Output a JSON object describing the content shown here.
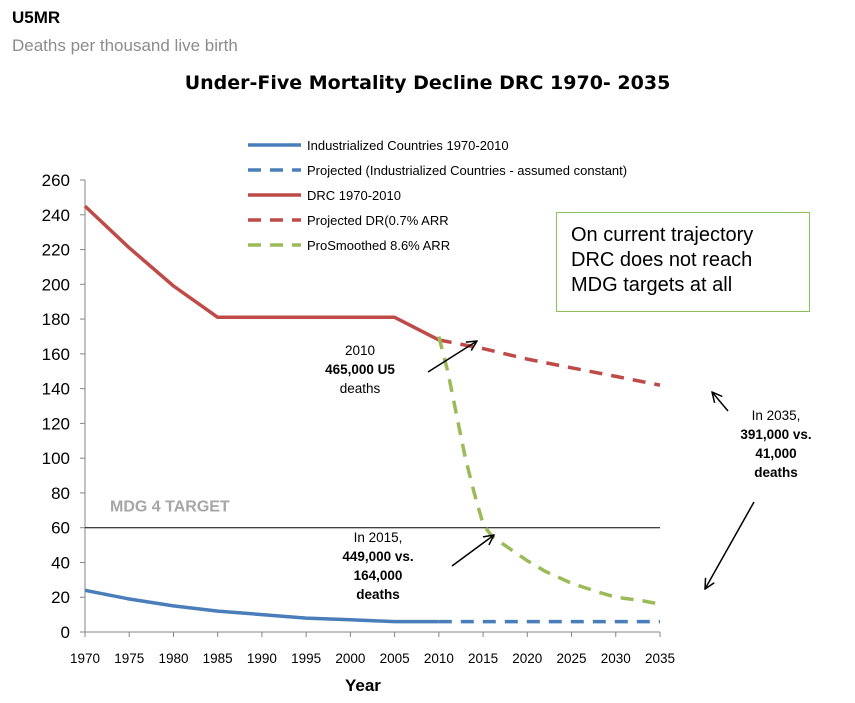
{
  "chart_data": {
    "type": "line",
    "unit_label": "U5MR",
    "unit_sublabel": "Deaths per thousand live birth",
    "title": "Under-Five Mortality Decline DRC 1970- 2035",
    "xlabel": "Year",
    "ylabel": "",
    "xlim": [
      1970,
      2035
    ],
    "ylim": [
      0,
      260
    ],
    "x_ticks": [
      "1970",
      "1975",
      "1980",
      "1985",
      "1990",
      "1995",
      "2000",
      "2005",
      "2010",
      "2015",
      "2020",
      "2025",
      "2030",
      "2035"
    ],
    "y_ticks": [
      "0",
      "20",
      "40",
      "60",
      "80",
      "100",
      "120",
      "140",
      "160",
      "180",
      "200",
      "220",
      "240",
      "260"
    ],
    "legend_position": "top-center",
    "series": [
      {
        "name": "Industrialized Countries 1970-2010",
        "color": "#4a7ebb",
        "dash": false,
        "x": [
          1970,
          1975,
          1980,
          1985,
          1990,
          1995,
          2000,
          2005,
          2010
        ],
        "values": [
          24,
          19,
          15,
          12,
          10,
          8,
          7,
          6,
          6
        ]
      },
      {
        "name": "Projected (Industrialized Countries - assumed constant)",
        "color": "#4a7ebb",
        "dash": true,
        "x": [
          2010,
          2035
        ],
        "values": [
          6,
          6
        ]
      },
      {
        "name": "DRC 1970-2010",
        "color": "#be4b48",
        "dash": false,
        "x": [
          1970,
          1975,
          1980,
          1985,
          1990,
          1995,
          2000,
          2005,
          2010
        ],
        "values": [
          245,
          221,
          199,
          181,
          181,
          181,
          181,
          181,
          168
        ]
      },
      {
        "name": "Projected DR(0.7% ARR",
        "color": "#be4b48",
        "dash": true,
        "x": [
          2010,
          2015,
          2020,
          2025,
          2030,
          2035
        ],
        "values": [
          168,
          163,
          157,
          152,
          147,
          142
        ]
      },
      {
        "name": "ProSmoothed 8.6% ARR",
        "color": "#9bbb59",
        "dash": true,
        "x": [
          2010,
          2011,
          2012,
          2013,
          2014,
          2015,
          2016,
          2018,
          2020,
          2022,
          2025,
          2028,
          2030,
          2033,
          2035
        ],
        "values": [
          170,
          150,
          125,
          100,
          80,
          62,
          55,
          48,
          41,
          35,
          28,
          23,
          20,
          18,
          16
        ]
      }
    ],
    "target_line": {
      "label": "MDG 4 TARGET",
      "value": 60
    },
    "callout_lines": [
      "On current trajectory",
      "DRC does not reach",
      "MDG targets at all"
    ],
    "annotations": [
      {
        "lines": [
          "2010",
          "465,000 U5",
          "deaths"
        ],
        "bold_part": "465,000"
      },
      {
        "lines": [
          "In 2015,",
          "449,000 vs.",
          "164,000",
          "deaths"
        ]
      },
      {
        "lines": [
          "In 2035,",
          "391,000 vs.",
          "41,000",
          "deaths"
        ]
      }
    ]
  }
}
